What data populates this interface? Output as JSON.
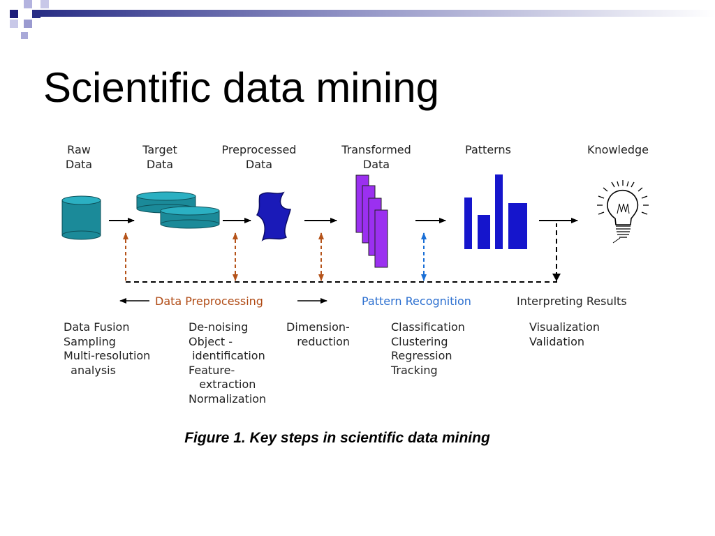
{
  "slide_title": "Scientific data mining",
  "stages": [
    "Raw\nData",
    "Target\nData",
    "Preprocessed\nData",
    "Transformed\nData",
    "Patterns",
    "Knowledge"
  ],
  "processes": {
    "preprocessing": "Data Preprocessing",
    "pattern_recognition": "Pattern Recognition",
    "interpreting": "Interpreting Results"
  },
  "step_lists": [
    "Data Fusion\nSampling\nMulti-resolution\n  analysis",
    "De-noising\nObject -\n identification\nFeature-\n   extraction\nNormalization",
    "Dimension-\n   reduction",
    "Classification\nClustering\nRegression\nTracking",
    "Visualization\nValidation"
  ],
  "caption": "Figure 1. Key steps in scientific data mining",
  "colors": {
    "cylinder": "#1b8a99",
    "preprocessed": "#1a1ab8",
    "transformed": "#9b30f0",
    "patterns": "#1515cc",
    "preprocessing_arrow": "#b5531a",
    "recognition_arrow": "#1a6fd6",
    "recognition_text": "#2b6fd0",
    "preprocessing_text": "#b04a14"
  }
}
